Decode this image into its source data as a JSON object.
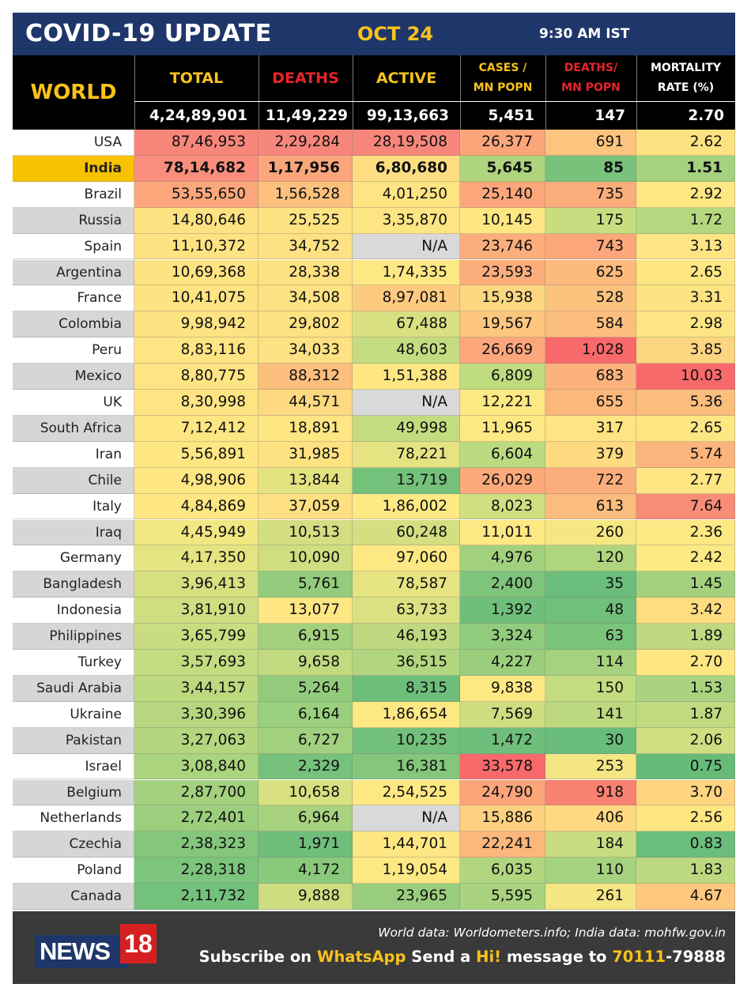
{
  "title": "COVID-19 UPDATE",
  "date": "OCT 24",
  "time": "9:30 AM IST",
  "header": {
    "world": "WORLD",
    "total": "TOTAL",
    "deaths": "DEATHS",
    "active": "ACTIVE",
    "cases_mn_1": "CASES /",
    "cases_mn_2": "MN POPN",
    "deaths_mn_1": "DEATHS/",
    "deaths_mn_2": "MN POPN",
    "mortality_1": "MORTALITY",
    "mortality_2": "RATE (%)"
  },
  "world_totals": {
    "total": "4,24,89,901",
    "deaths": "11,49,229",
    "active": "99,13,663",
    "cases_mn": "5,451",
    "deaths_mn": "147",
    "mortality": "2.70"
  },
  "colors": {
    "title_bg": "#1e3669",
    "accent_yellow": "#f9c21a",
    "deaths_red": "#e8242a",
    "india_highlight": "#f9c200",
    "footer_bg": "#3a3a3a"
  },
  "rows": [
    {
      "name": "USA",
      "total": "87,46,953",
      "deaths": "2,29,284",
      "active": "28,19,508",
      "cases_mn": "26,377",
      "deaths_mn": "691",
      "mortality": "2.62",
      "colors": [
        "#f7867a",
        "#f7867a",
        "#f7867a",
        "#fba67a",
        "#fcc47e",
        "#fde281"
      ]
    },
    {
      "name": "India",
      "total": "78,14,682",
      "deaths": "1,17,956",
      "active": "6,80,680",
      "cases_mn": "5,645",
      "deaths_mn": "85",
      "mortality": "1.51",
      "colors": [
        "#f98e7c",
        "#fba77b",
        "#fedd81",
        "#aed57d",
        "#78c27b",
        "#a5d27e"
      ]
    },
    {
      "name": "Brazil",
      "total": "53,55,650",
      "deaths": "1,56,528",
      "active": "4,01,250",
      "cases_mn": "25,140",
      "deaths_mn": "735",
      "mortality": "2.92",
      "colors": [
        "#fba77b",
        "#fcc17e",
        "#fee482",
        "#fba77b",
        "#fbad7b",
        "#ffe783"
      ]
    },
    {
      "name": "Russia",
      "total": "14,80,646",
      "deaths": "25,525",
      "active": "3,35,870",
      "cases_mn": "10,145",
      "deaths_mn": "175",
      "mortality": "1.72",
      "colors": [
        "#fee282",
        "#fee382",
        "#fee583",
        "#fee783",
        "#c8dd80",
        "#b4d77f"
      ]
    },
    {
      "name": "Spain",
      "total": "11,10,372",
      "deaths": "34,752",
      "active": "N/A",
      "cases_mn": "23,746",
      "deaths_mn": "743",
      "mortality": "3.13",
      "colors": [
        "#fee382",
        "#fee182",
        "#d9d9d9",
        "#fbae7c",
        "#fba77b",
        "#fee483"
      ]
    },
    {
      "name": "Argentina",
      "total": "10,69,368",
      "deaths": "28,338",
      "active": "1,74,335",
      "cases_mn": "23,593",
      "deaths_mn": "625",
      "mortality": "2.65",
      "colors": [
        "#fee382",
        "#fee282",
        "#fee883",
        "#fbae7c",
        "#fcba7d",
        "#fee683"
      ]
    },
    {
      "name": "France",
      "total": "10,41,075",
      "deaths": "34,508",
      "active": "8,97,081",
      "cases_mn": "15,938",
      "deaths_mn": "528",
      "mortality": "3.31",
      "colors": [
        "#fee382",
        "#fee182",
        "#fdcb7f",
        "#fdd780",
        "#fcc37e",
        "#fee382"
      ]
    },
    {
      "name": "Colombia",
      "total": "9,98,942",
      "deaths": "29,802",
      "active": "67,488",
      "cases_mn": "19,567",
      "deaths_mn": "584",
      "mortality": "2.98",
      "colors": [
        "#fee382",
        "#fee282",
        "#d9e081",
        "#fcc67e",
        "#fcbe7d",
        "#fee583"
      ]
    },
    {
      "name": "Peru",
      "total": "8,83,116",
      "deaths": "34,033",
      "active": "48,603",
      "cases_mn": "26,669",
      "deaths_mn": "1,028",
      "mortality": "3.85",
      "colors": [
        "#fee483",
        "#fee182",
        "#c3dc80",
        "#fba67b",
        "#f8696b",
        "#fdd580"
      ]
    },
    {
      "name": "Mexico",
      "total": "8,80,775",
      "deaths": "88,312",
      "active": "1,51,388",
      "cases_mn": "6,809",
      "deaths_mn": "683",
      "mortality": "10.03",
      "colors": [
        "#fee483",
        "#fcbe7d",
        "#fee783",
        "#bedb80",
        "#fcb27c",
        "#f8696b"
      ]
    },
    {
      "name": "UK",
      "total": "8,30,998",
      "deaths": "44,571",
      "active": "N/A",
      "cases_mn": "12,221",
      "deaths_mn": "655",
      "mortality": "5.36",
      "colors": [
        "#fee483",
        "#fed981",
        "#d9d9d9",
        "#fde983",
        "#fcb77c",
        "#fcbe7d"
      ]
    },
    {
      "name": "South Africa",
      "total": "7,12,412",
      "deaths": "18,891",
      "active": "49,998",
      "cases_mn": "11,965",
      "deaths_mn": "317",
      "mortality": "2.65",
      "colors": [
        "#fee683",
        "#fee683",
        "#c4dc80",
        "#fee883",
        "#fee482",
        "#fee683"
      ]
    },
    {
      "name": "Iran",
      "total": "5,56,891",
      "deaths": "31,985",
      "active": "78,221",
      "cases_mn": "6,604",
      "deaths_mn": "379",
      "mortality": "5.74",
      "colors": [
        "#fee783",
        "#fee282",
        "#e5e382",
        "#bcda80",
        "#fedb81",
        "#fbb47c"
      ]
    },
    {
      "name": "Chile",
      "total": "4,98,906",
      "deaths": "13,844",
      "active": "13,719",
      "cases_mn": "26,029",
      "deaths_mn": "722",
      "mortality": "2.77",
      "colors": [
        "#fee783",
        "#e4e382",
        "#73c17b",
        "#fba97b",
        "#fbae7c",
        "#fee683"
      ]
    },
    {
      "name": "Italy",
      "total": "4,84,869",
      "deaths": "37,059",
      "active": "1,86,002",
      "cases_mn": "8,023",
      "deaths_mn": "613",
      "mortality": "7.64",
      "colors": [
        "#fee783",
        "#fee082",
        "#fee983",
        "#cfdf81",
        "#fcbc7d",
        "#f98c76"
      ]
    },
    {
      "name": "Iraq",
      "total": "4,45,949",
      "deaths": "10,513",
      "active": "60,248",
      "cases_mn": "11,011",
      "deaths_mn": "260",
      "mortality": "2.36",
      "colors": [
        "#f1e783",
        "#d2de81",
        "#d3df81",
        "#fee883",
        "#f5e883",
        "#fde883"
      ]
    },
    {
      "name": "Germany",
      "total": "4,17,350",
      "deaths": "10,090",
      "active": "97,060",
      "cases_mn": "4,976",
      "deaths_mn": "120",
      "mortality": "2.42",
      "colors": [
        "#e4e482",
        "#cfde81",
        "#fee883",
        "#a2d17e",
        "#afd57e",
        "#fde983"
      ]
    },
    {
      "name": "Bangladesh",
      "total": "3,96,413",
      "deaths": "5,761",
      "active": "78,587",
      "cases_mn": "2,400",
      "deaths_mn": "35",
      "mortality": "1.45",
      "colors": [
        "#d6e081",
        "#93cc7d",
        "#e6e382",
        "#7fc47c",
        "#6bbd7b",
        "#a3d17e"
      ]
    },
    {
      "name": "Indonesia",
      "total": "3,81,910",
      "deaths": "13,077",
      "active": "63,733",
      "cases_mn": "1,392",
      "deaths_mn": "48",
      "mortality": "3.42",
      "colors": [
        "#cfde81",
        "#fee683",
        "#dbe082",
        "#6fbf7b",
        "#70bf7b",
        "#fedd81"
      ]
    },
    {
      "name": "Philippines",
      "total": "3,65,799",
      "deaths": "6,915",
      "active": "46,193",
      "cases_mn": "3,324",
      "deaths_mn": "63",
      "mortality": "1.89",
      "colors": [
        "#c9dd80",
        "#a4d17e",
        "#bed980",
        "#91cb7d",
        "#7ac37b",
        "#bed980"
      ]
    },
    {
      "name": "Turkey",
      "total": "3,57,693",
      "deaths": "9,658",
      "active": "36,515",
      "cases_mn": "4,227",
      "deaths_mn": "114",
      "mortality": "2.70",
      "colors": [
        "#c4dc80",
        "#c1da80",
        "#b2d57f",
        "#9ace7d",
        "#a6d27e",
        "#fee683"
      ]
    },
    {
      "name": "Saudi Arabia",
      "total": "3,44,157",
      "deaths": "5,264",
      "active": "8,315",
      "cases_mn": "9,838",
      "deaths_mn": "150",
      "mortality": "1.53",
      "colors": [
        "#bcd97f",
        "#93cb7d",
        "#6ebe7b",
        "#fde883",
        "#c4dc80",
        "#a9d37e"
      ]
    },
    {
      "name": "Ukraine",
      "total": "3,30,396",
      "deaths": "6,164",
      "active": "1,86,654",
      "cases_mn": "7,569",
      "deaths_mn": "141",
      "mortality": "1.87",
      "colors": [
        "#b6d77f",
        "#9acf7d",
        "#fee883",
        "#cddd80",
        "#bcd97f",
        "#c0da80"
      ]
    },
    {
      "name": "Pakistan",
      "total": "3,27,063",
      "deaths": "6,727",
      "active": "10,235",
      "cases_mn": "1,472",
      "deaths_mn": "30",
      "mortality": "2.06",
      "colors": [
        "#b4d67f",
        "#a1d17e",
        "#72c07b",
        "#6fbe7b",
        "#69bc7a",
        "#d0de81"
      ]
    },
    {
      "name": "Israel",
      "total": "3,08,840",
      "deaths": "2,329",
      "active": "16,381",
      "cases_mn": "33,578",
      "deaths_mn": "253",
      "mortality": "0.75",
      "colors": [
        "#abd47e",
        "#76c17b",
        "#83c67c",
        "#f8696b",
        "#f3e683",
        "#66bb79"
      ]
    },
    {
      "name": "Belgium",
      "total": "2,87,700",
      "deaths": "10,658",
      "active": "2,54,525",
      "cases_mn": "24,790",
      "deaths_mn": "918",
      "mortality": "3.70",
      "colors": [
        "#a3d17e",
        "#d9e081",
        "#fee883",
        "#fba57b",
        "#f98170",
        "#fed481"
      ]
    },
    {
      "name": "Netherlands",
      "total": "2,72,401",
      "deaths": "6,964",
      "active": "N/A",
      "cases_mn": "15,886",
      "deaths_mn": "406",
      "mortality": "2.56",
      "colors": [
        "#9bcf7e",
        "#a8d27e",
        "#d9d9d9",
        "#fdd17f",
        "#fed981",
        "#fee683"
      ]
    },
    {
      "name": "Czechia",
      "total": "2,38,323",
      "deaths": "1,971",
      "active": "1,44,701",
      "cases_mn": "22,241",
      "deaths_mn": "184",
      "mortality": "0.83",
      "colors": [
        "#84c77c",
        "#6fbe7b",
        "#fee783",
        "#fcb77c",
        "#c7dc80",
        "#6bbd7b"
      ]
    },
    {
      "name": "Poland",
      "total": "2,28,318",
      "deaths": "4,172",
      "active": "1,19,054",
      "cases_mn": "6,035",
      "deaths_mn": "110",
      "mortality": "1.83",
      "colors": [
        "#7dc47c",
        "#8ac97c",
        "#fee883",
        "#b1d67f",
        "#a5d27e",
        "#bcd97f"
      ]
    },
    {
      "name": "Canada",
      "total": "2,11,732",
      "deaths": "9,888",
      "active": "23,965",
      "cases_mn": "5,595",
      "deaths_mn": "261",
      "mortality": "4.67",
      "colors": [
        "#74c17b",
        "#ccde80",
        "#98cd7d",
        "#a9d37e",
        "#f4e683",
        "#fdc77e"
      ]
    }
  ],
  "footer": {
    "logo_word": "NEWS",
    "logo_number": "18",
    "source": "World data: Worldometers.info; India data: mohfw.gov.in",
    "sub_1": "Subscribe on ",
    "sub_whatsapp": "WhatsApp",
    "sub_2": " Send a ",
    "sub_hi": "Hi!",
    "sub_3": " message to ",
    "sub_num1": "70111",
    "sub_num2": "-79888"
  }
}
